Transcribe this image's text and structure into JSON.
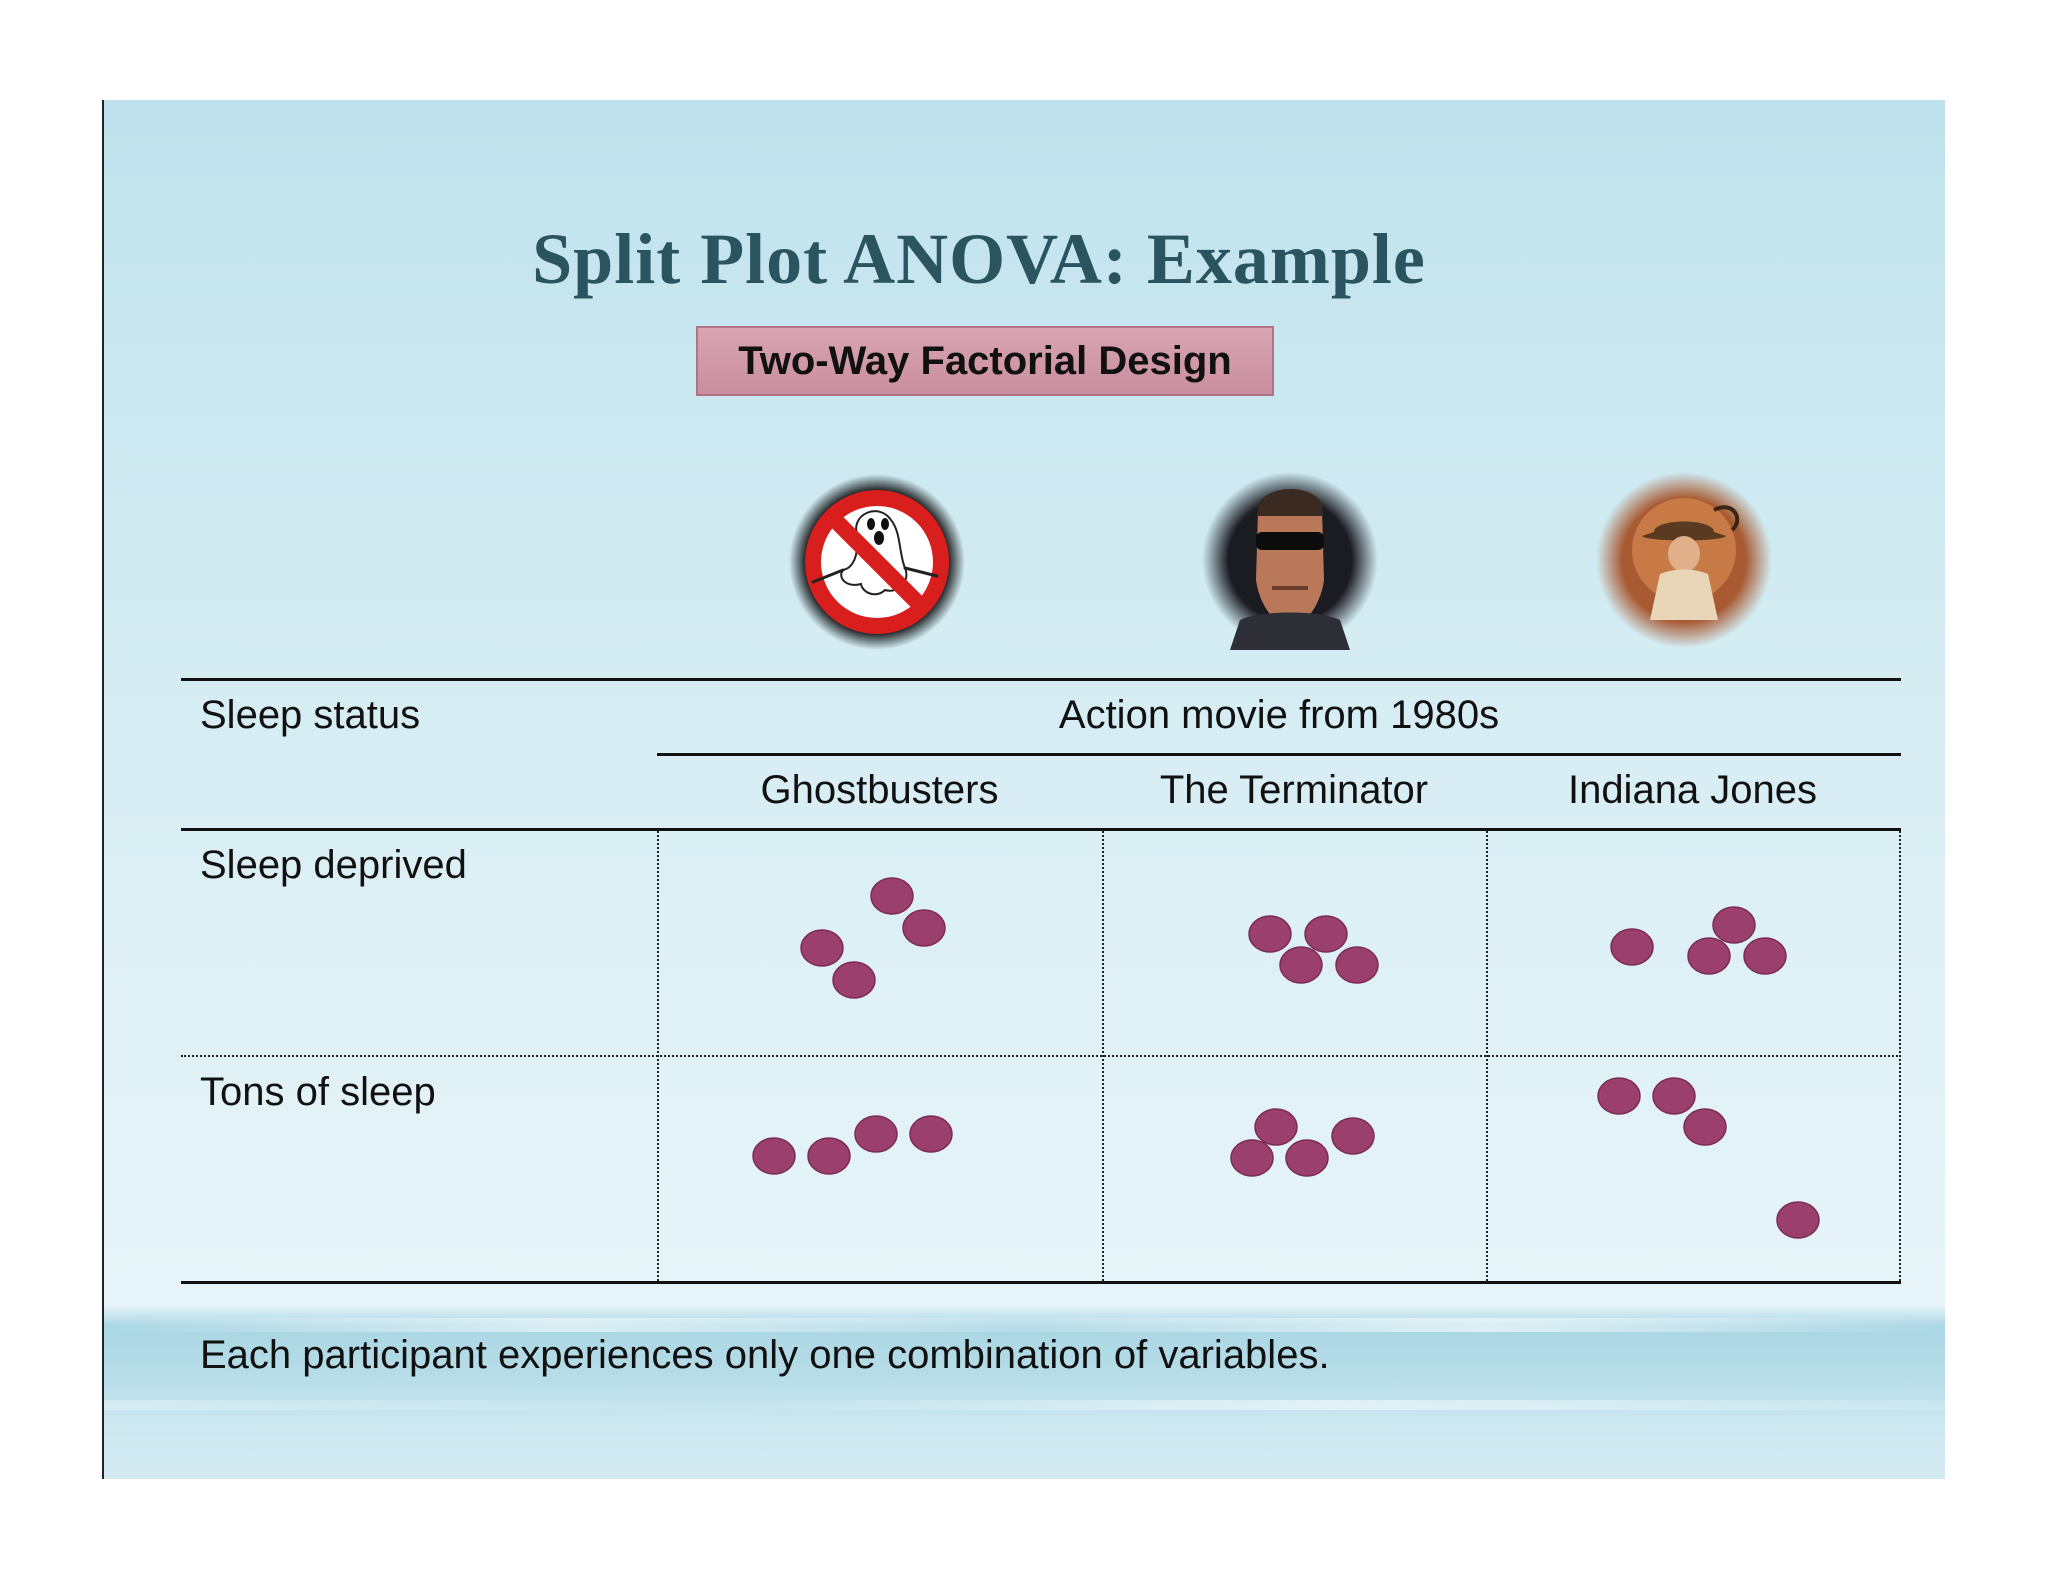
{
  "slide": {
    "title": "Split Plot ANOVA: Example",
    "subtitle": "Two-Way Factorial Design"
  },
  "table": {
    "row_header": "Sleep status",
    "column_group_header": "Action movie from 1980s",
    "columns": [
      "Ghostbusters",
      "The Terminator",
      "Indiana Jones"
    ],
    "rows": [
      "Sleep deprived",
      "Tons of sleep"
    ]
  },
  "icons": {
    "ghostbusters": "ghostbusters-logo-icon",
    "terminator": "terminator-portrait-icon",
    "indiana_jones": "indiana-jones-portrait-icon"
  },
  "participant_dot_color": "#9b3f6e",
  "participants_per_cell": [
    [
      4,
      4,
      4
    ],
    [
      4,
      4,
      4
    ]
  ],
  "footer": "Each participant experiences only one combination of variables."
}
